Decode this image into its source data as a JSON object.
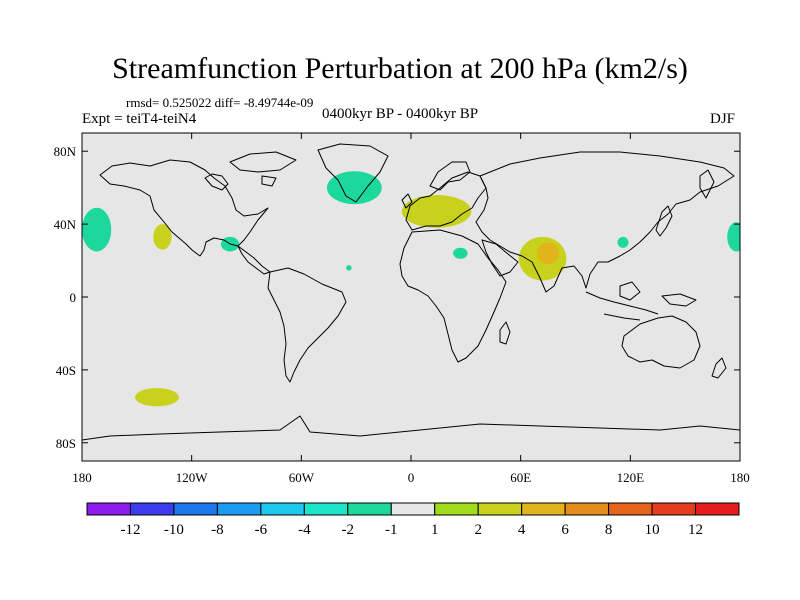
{
  "title": "Streamfunction Perturbation at 200 hPa (km2/s)",
  "stats": "rmsd= 0.525022  diff= -8.49744e-09",
  "experiment": "Expt = teiT4-teiN4",
  "period": "0400kyr BP - 0400kyr BP",
  "season": "DJF",
  "colors": {
    "ocean_background": "#e6e6e6",
    "coastline": "#000000",
    "bins": [
      "#8c1cec",
      "#3c3cec",
      "#1c78ec",
      "#1c9cf0",
      "#1cc8ec",
      "#1ce4c8",
      "#1cd89c",
      "#e6e6e6",
      "#a0dc1c",
      "#c8d21c",
      "#e1b41c",
      "#e48c1c",
      "#e4641c",
      "#e43c1c",
      "#e41c1c"
    ]
  },
  "chart_data": {
    "type": "map",
    "projection": "cylindrical-equidistant",
    "lon_range": [
      -180,
      180
    ],
    "lat_range": [
      -90,
      90
    ],
    "x_ticks": [
      {
        "value": -180,
        "label": "180"
      },
      {
        "value": -120,
        "label": "120W"
      },
      {
        "value": -60,
        "label": "60W"
      },
      {
        "value": 0,
        "label": "0"
      },
      {
        "value": 60,
        "label": "60E"
      },
      {
        "value": 120,
        "label": "120E"
      },
      {
        "value": 180,
        "label": "180"
      }
    ],
    "y_ticks": [
      {
        "value": 80,
        "label": "80N"
      },
      {
        "value": 40,
        "label": "40N"
      },
      {
        "value": 0,
        "label": "0"
      },
      {
        "value": -40,
        "label": "40S"
      },
      {
        "value": -80,
        "label": "80S"
      }
    ],
    "colorbar": {
      "levels": [
        -12,
        -10,
        -8,
        -6,
        -4,
        -2,
        -1,
        1,
        2,
        4,
        6,
        8,
        10,
        12
      ],
      "labels": [
        "-12",
        "-10",
        "-8",
        "-6",
        "-4",
        "-2",
        "-1",
        "1",
        "2",
        "4",
        "6",
        "8",
        "10",
        "12"
      ]
    },
    "anomalies": [
      {
        "name": "north-pacific-negative",
        "lon": -172,
        "lat": 37,
        "dlon": 8,
        "dlat": 12,
        "level": -2
      },
      {
        "name": "north-atlantic-negative",
        "lon": -31,
        "lat": 60,
        "dlon": 15,
        "dlat": 9,
        "level": -2
      },
      {
        "name": "europe-positive",
        "lon": 14,
        "lat": 47,
        "dlon": 19,
        "dlat": 9,
        "level": 2
      },
      {
        "name": "pacific-positive",
        "lon": -136,
        "lat": 33,
        "dlon": 5,
        "dlat": 7,
        "level": 2
      },
      {
        "name": "gulf-negative",
        "lon": -99,
        "lat": 29,
        "dlon": 5,
        "dlat": 4,
        "level": -2
      },
      {
        "name": "arabia-positive",
        "lon": 72,
        "lat": 21,
        "dlon": 13,
        "dlat": 12,
        "level": 2
      },
      {
        "name": "india-positive-core",
        "lon": 75,
        "lat": 24,
        "dlon": 6,
        "dlat": 6,
        "level": 4
      },
      {
        "name": "middle-east-negative",
        "lon": 27,
        "lat": 24,
        "dlon": 4,
        "dlat": 3,
        "level": -2
      },
      {
        "name": "atlantic-negative-small",
        "lon": -34,
        "lat": 16,
        "dlon": 1.5,
        "dlat": 1.5,
        "level": -2
      },
      {
        "name": "east-asia-negative",
        "lon": 116,
        "lat": 30,
        "dlon": 3,
        "dlat": 3,
        "level": -2
      },
      {
        "name": "dateline-negative",
        "lon": 178,
        "lat": 33,
        "dlon": 5,
        "dlat": 8,
        "level": -2
      },
      {
        "name": "south-pacific-positive",
        "lon": -139,
        "lat": -55,
        "dlon": 12,
        "dlat": 5,
        "level": 2
      }
    ]
  }
}
